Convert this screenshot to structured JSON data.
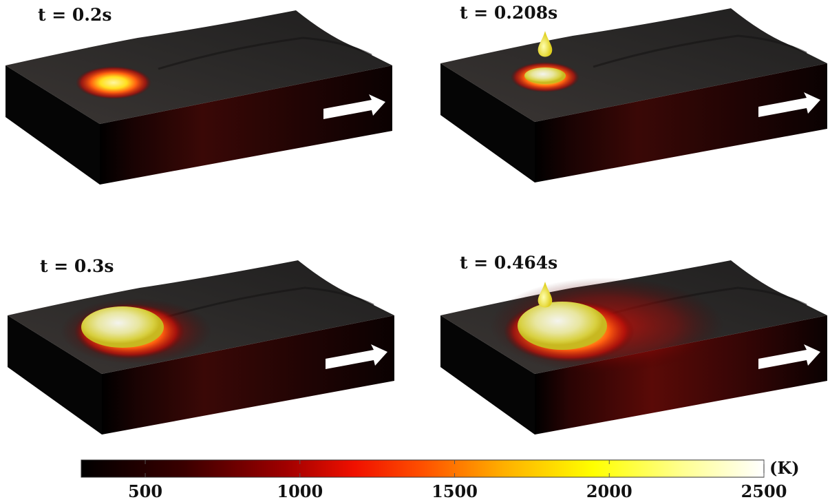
{
  "panels": [
    {
      "label": "t = 0.2s"
    },
    {
      "label": "t = 0.208s"
    },
    {
      "label": "t = 0.3s"
    },
    {
      "label": "t = 0.464s"
    }
  ],
  "colorbar": {
    "unit": "(K)",
    "range": [
      293,
      2500
    ],
    "ticks": [
      500,
      1000,
      1500,
      2000,
      2500
    ]
  }
}
